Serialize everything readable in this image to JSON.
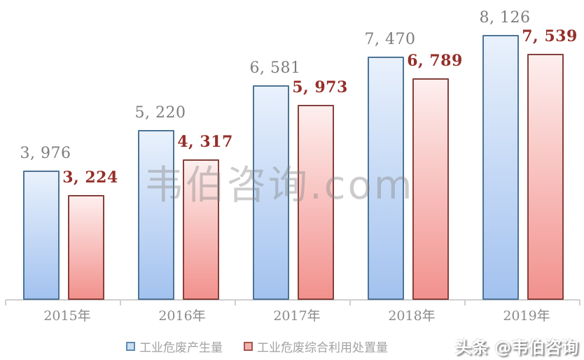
{
  "chart_data": {
    "type": "bar",
    "title": "",
    "xlabel": "",
    "ylabel": "",
    "categories": [
      "2015年",
      "2016年",
      "2017年",
      "2018年",
      "2019年"
    ],
    "series": [
      {
        "name": "工业危废产生量",
        "values": [
          3976,
          5220,
          6581,
          7470,
          8126
        ],
        "labels": [
          "3, 976",
          "5, 220",
          "6, 581",
          "7, 470",
          "8, 126"
        ],
        "fill_top": "#e9f1fc",
        "fill_bottom": "#a3c2ef",
        "border_color": "#4d7496",
        "label_color": "#7d7d7d"
      },
      {
        "name": "工业危废综合利用处置量",
        "values": [
          3224,
          4317,
          5973,
          6789,
          7539
        ],
        "labels": [
          "3, 224",
          "4, 317",
          "5, 973",
          "6, 789",
          "7, 539"
        ],
        "fill_top": "#fdefee",
        "fill_bottom": "#f2918d",
        "border_color": "#84403b",
        "label_color": "#962e29"
      }
    ],
    "ylim": [
      0,
      8550
    ],
    "grid": false,
    "legend_position": "bottom"
  },
  "legend": {
    "items": [
      {
        "swatch_fill": "#cadef2",
        "swatch_border": "#5e8cb4"
      },
      {
        "swatch_fill": "#eeb3ad",
        "swatch_border": "#a8554e"
      }
    ]
  },
  "watermarks": {
    "center": "韦伯咨询.com",
    "bottom_right": "头条 @韦伯咨询"
  }
}
